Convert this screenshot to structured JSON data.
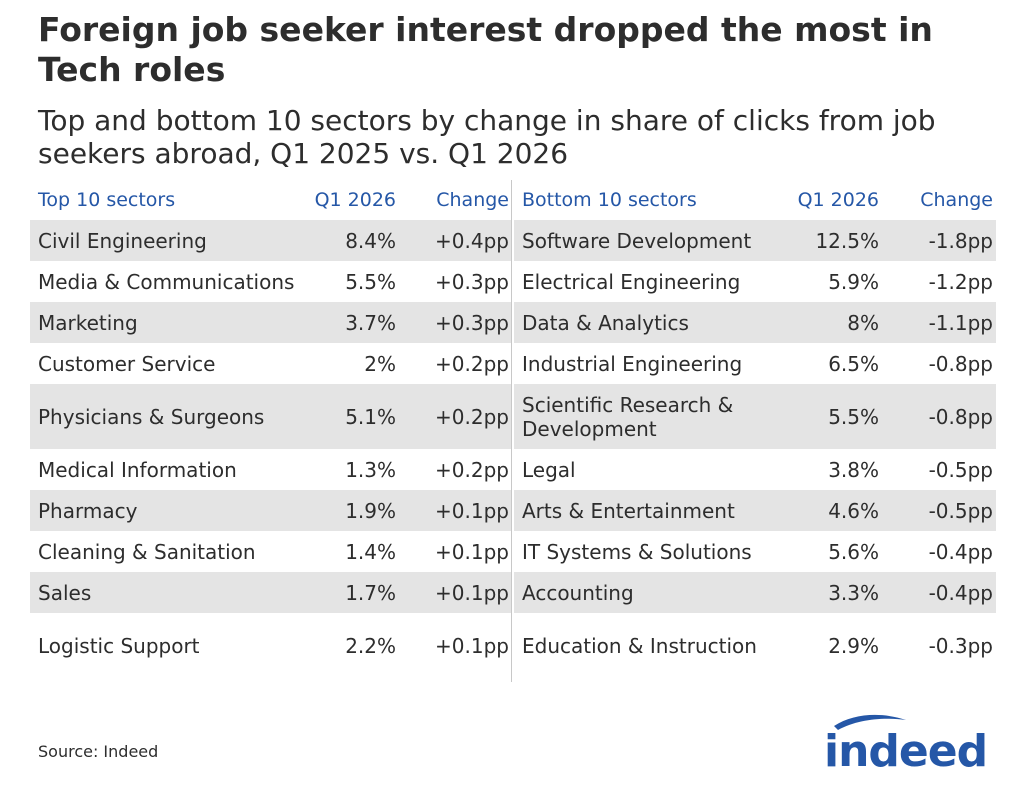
{
  "header": {
    "title": "Foreign job seeker interest dropped the most in Tech roles",
    "subtitle": "Top and bottom 10 sectors by change in share of clicks from job seekers abroad, Q1 2025 vs. Q1 2026"
  },
  "colors": {
    "header_text": "#2557a7",
    "row_shade": "#e4e4e4",
    "brand": "#2557a7"
  },
  "chart_data": {
    "type": "table",
    "left": {
      "columns": [
        "Top 10 sectors",
        "Q1 2026",
        "Change"
      ],
      "rows": [
        {
          "sector": "Civil Engineering",
          "q1_2026": "8.4%",
          "change": "+0.4pp"
        },
        {
          "sector": "Media & Communications",
          "q1_2026": "5.5%",
          "change": "+0.3pp"
        },
        {
          "sector": "Marketing",
          "q1_2026": "3.7%",
          "change": "+0.3pp"
        },
        {
          "sector": "Customer Service",
          "q1_2026": "2%",
          "change": "+0.2pp"
        },
        {
          "sector": "Physicians & Surgeons",
          "q1_2026": "5.1%",
          "change": "+0.2pp"
        },
        {
          "sector": "Medical Information",
          "q1_2026": "1.3%",
          "change": "+0.2pp"
        },
        {
          "sector": "Pharmacy",
          "q1_2026": "1.9%",
          "change": "+0.1pp"
        },
        {
          "sector": "Cleaning & Sanitation",
          "q1_2026": "1.4%",
          "change": "+0.1pp"
        },
        {
          "sector": "Sales",
          "q1_2026": "1.7%",
          "change": "+0.1pp"
        },
        {
          "sector": "Logistic Support",
          "q1_2026": "2.2%",
          "change": "+0.1pp"
        }
      ]
    },
    "right": {
      "columns": [
        "Bottom 10 sectors",
        "Q1 2026",
        "Change"
      ],
      "rows": [
        {
          "sector": "Software Development",
          "q1_2026": "12.5%",
          "change": "-1.8pp"
        },
        {
          "sector": "Electrical Engineering",
          "q1_2026": "5.9%",
          "change": "-1.2pp"
        },
        {
          "sector": "Data & Analytics",
          "q1_2026": "8%",
          "change": "-1.1pp"
        },
        {
          "sector": "Industrial Engineering",
          "q1_2026": "6.5%",
          "change": "-0.8pp"
        },
        {
          "sector": "Scientific Research & Development",
          "q1_2026": "5.5%",
          "change": "-0.8pp"
        },
        {
          "sector": "Legal",
          "q1_2026": "3.8%",
          "change": "-0.5pp"
        },
        {
          "sector": "Arts & Entertainment",
          "q1_2026": "4.6%",
          "change": "-0.5pp"
        },
        {
          "sector": "IT Systems & Solutions",
          "q1_2026": "5.6%",
          "change": "-0.4pp"
        },
        {
          "sector": "Accounting",
          "q1_2026": "3.3%",
          "change": "-0.4pp"
        },
        {
          "sector": "Education & Instruction",
          "q1_2026": "2.9%",
          "change": "-0.3pp"
        }
      ]
    }
  },
  "footer": {
    "source": "Source: Indeed",
    "logo_text": "indeed"
  }
}
